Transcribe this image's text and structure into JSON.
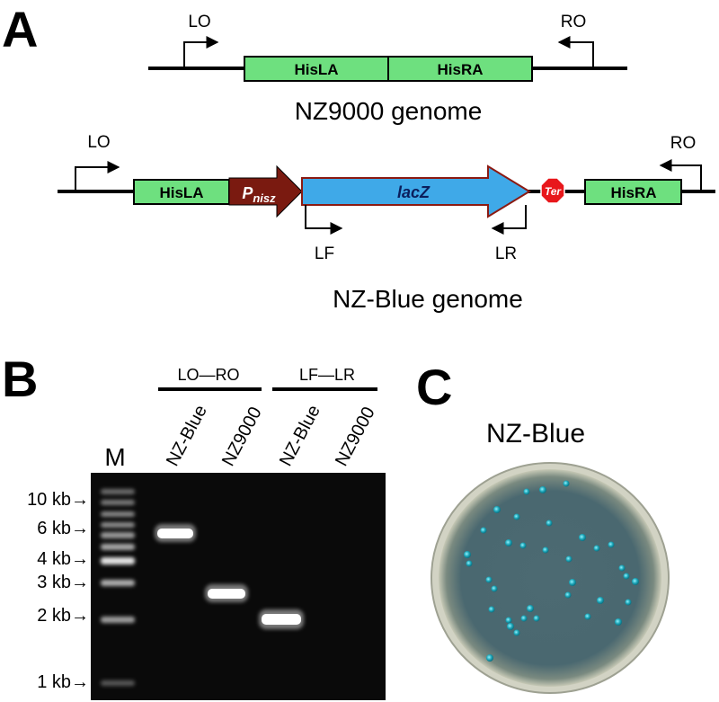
{
  "panels": {
    "a": {
      "letter": "A",
      "genome_wt": {
        "title": "NZ9000 genome",
        "left_box": "HisLA",
        "right_box": "HisRA",
        "left_primer": "LO",
        "right_primer": "RO"
      },
      "genome_mut": {
        "title": "NZ-Blue genome",
        "left_box": "HisLA",
        "promoter": "P",
        "promoter_sub": "nisz",
        "gene": "lacZ",
        "terminator": "Ter",
        "right_box": "HisRA",
        "left_primer": "LO",
        "right_primer": "RO",
        "inner_fwd_primer": "LF",
        "inner_rev_primer": "LR"
      }
    },
    "b": {
      "letter": "B",
      "groups": [
        "LO—RO",
        "LF—LR"
      ],
      "lane_marker": "M",
      "lanes": [
        "NZ-Blue",
        "NZ9000",
        "NZ-Blue",
        "NZ9000"
      ],
      "ladder": [
        "10 kb→",
        "6 kb→",
        "4 kb→",
        "3 kb→",
        "2 kb→",
        "1 kb→"
      ]
    },
    "c": {
      "letter": "C",
      "title": "NZ-Blue"
    }
  },
  "colors": {
    "homology_box": "#6ee07f",
    "promoter": "#7a1a10",
    "gene": "#3fa9e8",
    "terminator": "#e8171b",
    "gel_bg": "#0a0a0a",
    "colony": "#1aa2b4"
  }
}
